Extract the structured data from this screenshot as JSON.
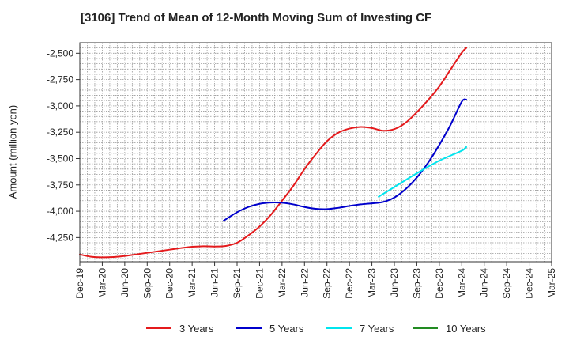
{
  "chart_data": {
    "type": "line",
    "title": "[3106]  Trend of Mean of 12-Month Moving Sum of Investing CF",
    "xlabel": "",
    "ylabel": "Amount (million yen)",
    "ylim": [
      -4480,
      -2400
    ],
    "yticks": [
      -2500,
      -2750,
      -3000,
      -3250,
      -3500,
      -3750,
      -4000,
      -4250
    ],
    "ytick_labels": [
      "-2,500",
      "-2,750",
      "-3,000",
      "-3,250",
      "-3,500",
      "-3,750",
      "-4,000",
      "-4,250"
    ],
    "categories": [
      "Dec-19",
      "Mar-20",
      "Jun-20",
      "Sep-20",
      "Dec-20",
      "Mar-21",
      "Jun-21",
      "Sep-21",
      "Dec-21",
      "Mar-22",
      "Jun-22",
      "Sep-22",
      "Dec-22",
      "Mar-23",
      "Jun-23",
      "Sep-23",
      "Dec-23",
      "Mar-24",
      "Jun-24",
      "Sep-24",
      "Dec-24",
      "Mar-25"
    ],
    "grid": true,
    "legend_position": "bottom",
    "series": [
      {
        "name": "3 Years",
        "color": "#e41a1c",
        "points": [
          [
            0,
            -4410
          ],
          [
            0.5,
            -4432
          ],
          [
            1,
            -4438
          ],
          [
            1.5,
            -4435
          ],
          [
            2,
            -4425
          ],
          [
            2.5,
            -4410
          ],
          [
            3,
            -4395
          ],
          [
            3.5,
            -4380
          ],
          [
            4,
            -4365
          ],
          [
            4.5,
            -4350
          ],
          [
            5,
            -4337
          ],
          [
            5.5,
            -4333
          ],
          [
            6,
            -4335
          ],
          [
            6.5,
            -4330
          ],
          [
            7,
            -4300
          ],
          [
            7.5,
            -4230
          ],
          [
            8,
            -4145
          ],
          [
            8.5,
            -4035
          ],
          [
            9,
            -3900
          ],
          [
            9.5,
            -3760
          ],
          [
            10,
            -3600
          ],
          [
            10.5,
            -3460
          ],
          [
            11,
            -3335
          ],
          [
            11.5,
            -3255
          ],
          [
            12,
            -3215
          ],
          [
            12.5,
            -3200
          ],
          [
            13,
            -3210
          ],
          [
            13.5,
            -3235
          ],
          [
            14,
            -3220
          ],
          [
            14.5,
            -3160
          ],
          [
            15,
            -3060
          ],
          [
            15.5,
            -2945
          ],
          [
            16,
            -2815
          ],
          [
            16.5,
            -2655
          ],
          [
            17,
            -2495
          ],
          [
            17.2,
            -2450
          ]
        ]
      },
      {
        "name": "5 Years",
        "color": "#0000cc",
        "points": [
          [
            6.4,
            -4090
          ],
          [
            7,
            -4010
          ],
          [
            7.5,
            -3960
          ],
          [
            8,
            -3930
          ],
          [
            8.5,
            -3918
          ],
          [
            9,
            -3920
          ],
          [
            9.5,
            -3935
          ],
          [
            10,
            -3960
          ],
          [
            10.5,
            -3977
          ],
          [
            11,
            -3980
          ],
          [
            11.5,
            -3968
          ],
          [
            12,
            -3950
          ],
          [
            12.5,
            -3935
          ],
          [
            13,
            -3925
          ],
          [
            13.5,
            -3912
          ],
          [
            14,
            -3870
          ],
          [
            14.5,
            -3790
          ],
          [
            15,
            -3680
          ],
          [
            15.5,
            -3540
          ],
          [
            16,
            -3370
          ],
          [
            16.5,
            -3180
          ],
          [
            17,
            -2960
          ],
          [
            17.2,
            -2940
          ]
        ]
      },
      {
        "name": "7 Years",
        "color": "#00e5ee",
        "points": [
          [
            13.3,
            -3862
          ],
          [
            14,
            -3770
          ],
          [
            15,
            -3640
          ],
          [
            16,
            -3520
          ],
          [
            17,
            -3425
          ],
          [
            17.2,
            -3390
          ]
        ]
      },
      {
        "name": "10 Years",
        "color": "#228b22",
        "points": []
      }
    ]
  }
}
